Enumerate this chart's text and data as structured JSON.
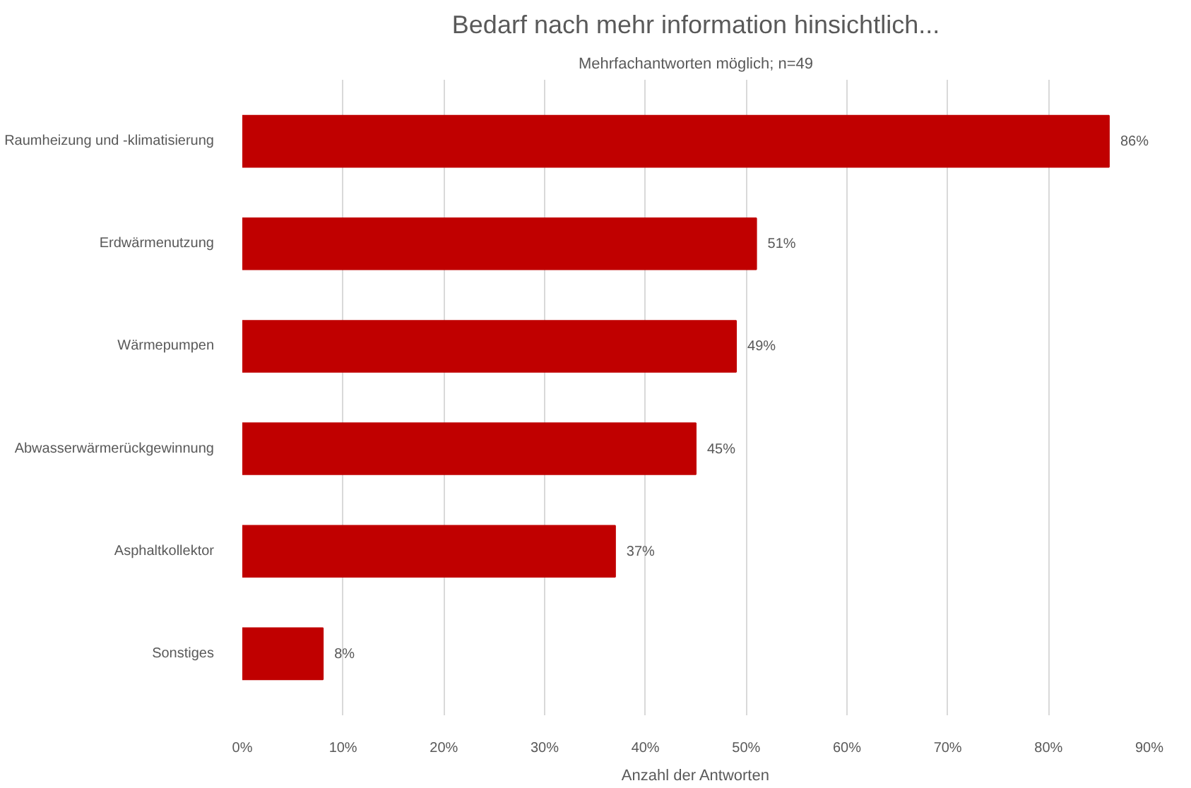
{
  "chart_data": {
    "type": "bar",
    "orientation": "horizontal",
    "title": "Bedarf nach mehr information hinsichtlich...",
    "subtitle": "Mehrfachantworten möglich; n=49",
    "xlabel": "Anzahl der Antworten",
    "categories": [
      "Raumheizung und -klimatisierung",
      "Erdwärmenutzung",
      "Wärmepumpen",
      "Abwasserwärmerückgewinnung",
      "Asphaltkollektor",
      "Sonstiges"
    ],
    "values": [
      86,
      51,
      49,
      45,
      37,
      8
    ],
    "value_labels": [
      "86%",
      "51%",
      "49%",
      "45%",
      "37%",
      "8%"
    ],
    "color": "#c00000",
    "xlim": [
      0,
      90
    ],
    "xticks": [
      {
        "value": 0,
        "label": "0%"
      },
      {
        "value": 10,
        "label": "10%"
      },
      {
        "value": 20,
        "label": "20%"
      },
      {
        "value": 30,
        "label": "30%"
      },
      {
        "value": 40,
        "label": "40%"
      },
      {
        "value": 50,
        "label": "50%"
      },
      {
        "value": 60,
        "label": "60%"
      },
      {
        "value": 70,
        "label": "70%"
      },
      {
        "value": 80,
        "label": "80%"
      },
      {
        "value": 90,
        "label": "90%"
      }
    ],
    "grid": "x"
  }
}
